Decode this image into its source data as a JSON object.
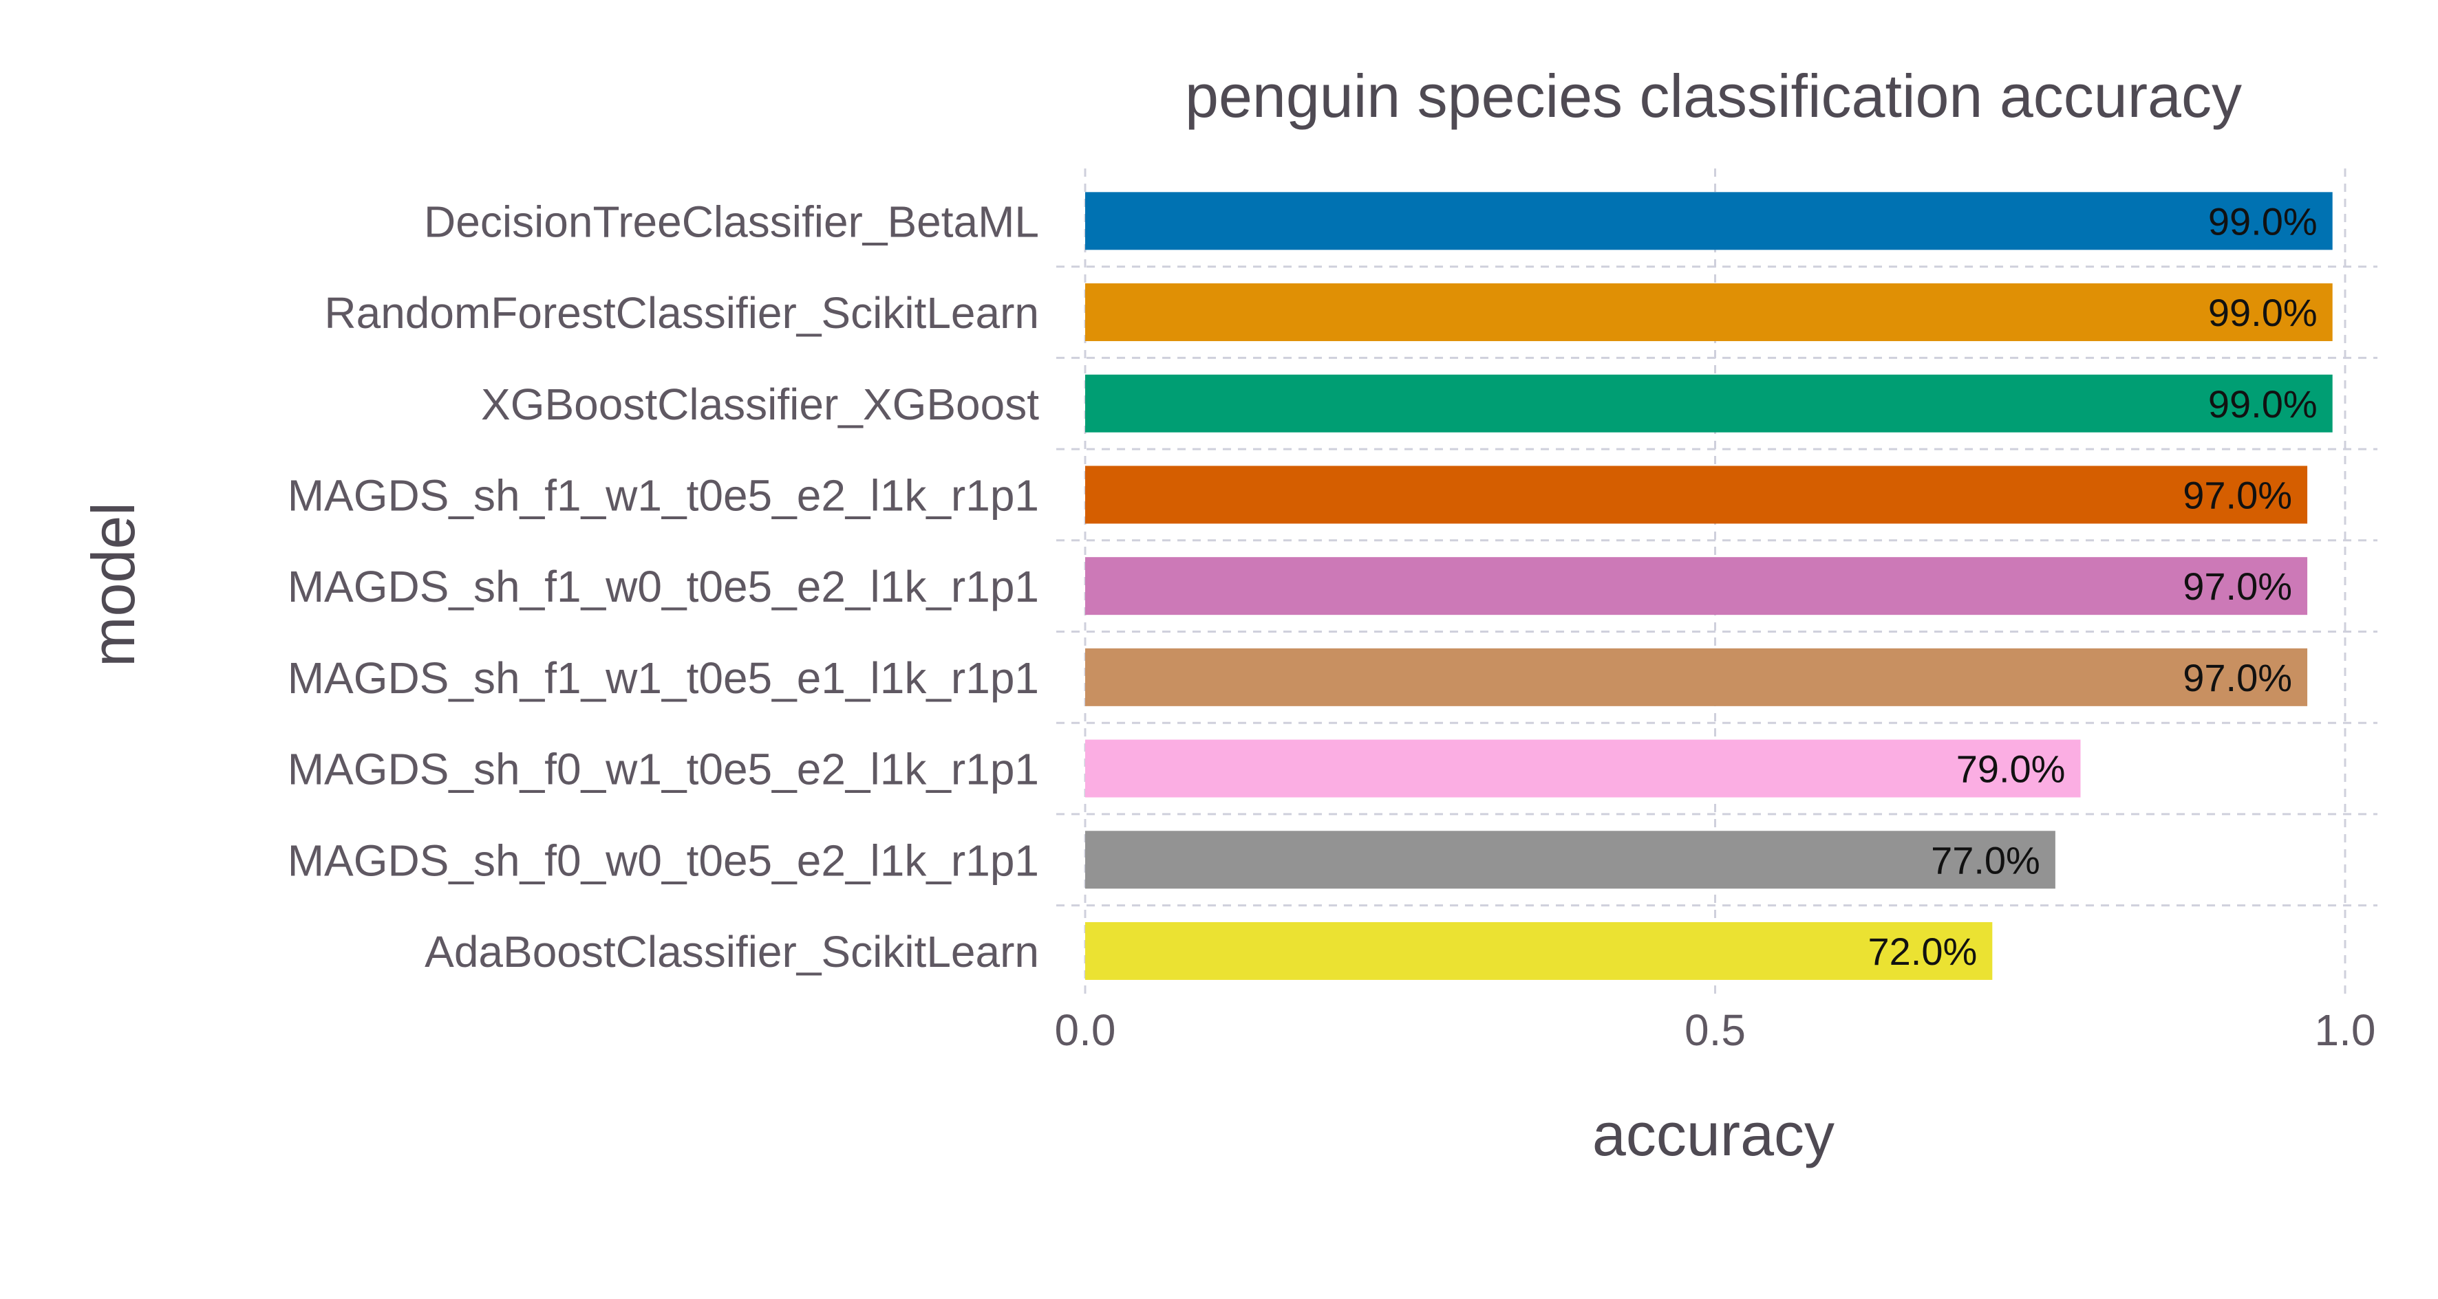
{
  "chart_data": {
    "type": "bar",
    "orientation": "horizontal",
    "title": "penguin species classification accuracy",
    "xlabel": "accuracy",
    "ylabel": "model",
    "xlim": [
      0,
      1
    ],
    "xticks": [
      "0.0",
      "0.5",
      "1.0"
    ],
    "grid": true,
    "categories": [
      "DecisionTreeClassifier_BetaML",
      "RandomForestClassifier_ScikitLearn",
      "XGBoostClassifier_XGBoost",
      "MAGDS_sh_f1_w1_t0e5_e2_l1k_r1p1",
      "MAGDS_sh_f1_w0_t0e5_e2_l1k_r1p1",
      "MAGDS_sh_f1_w1_t0e5_e1_l1k_r1p1",
      "MAGDS_sh_f0_w1_t0e5_e2_l1k_r1p1",
      "MAGDS_sh_f0_w0_t0e5_e2_l1k_r1p1",
      "AdaBoostClassifier_ScikitLearn"
    ],
    "values": [
      0.99,
      0.99,
      0.99,
      0.97,
      0.97,
      0.97,
      0.79,
      0.77,
      0.72
    ],
    "labels": [
      "99.0%",
      "99.0%",
      "99.0%",
      "97.0%",
      "97.0%",
      "97.0%",
      "79.0%",
      "77.0%",
      "72.0%"
    ],
    "colors": [
      "#0072b2",
      "#e09005",
      "#009e73",
      "#d55e00",
      "#cc79b7",
      "#c89061",
      "#fbaee3",
      "#939393",
      "#ebe232"
    ]
  }
}
